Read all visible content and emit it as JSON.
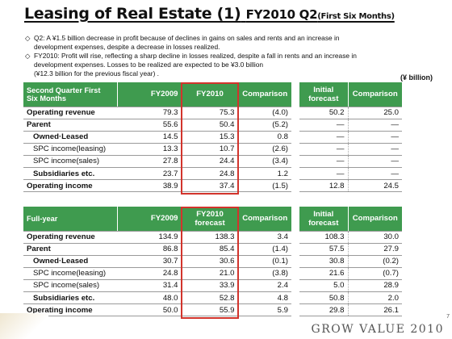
{
  "title": {
    "main": "Leasing of Real Estate (1)",
    "sub": "FY2010 Q2",
    "paren": "(First Six Months)"
  },
  "notes": [
    {
      "mark": "◇",
      "text": "Q2: A ¥1.5 billion decrease in profit because of declines in gains on sales and rents and an increase in"
    },
    {
      "mark": "",
      "text": "development expenses, despite a decrease in losses realized."
    },
    {
      "mark": "◇",
      "text": "FY2010: Profit will rise, reflecting a sharp decline in losses realized, despite a fall in rents and an increase in"
    },
    {
      "mark": "",
      "text": "development expenses. Losses to be realized are expected to be ¥3.0 billion"
    },
    {
      "mark": "",
      "text": "(¥12.3 billion for the previous fiscal year) ."
    }
  ],
  "unit": "(¥ billion)",
  "q2": {
    "header": {
      "label": "Second Quarter First Six Months",
      "c1": "FY2009",
      "c2": "FY2010",
      "c3": "Comparison"
    },
    "rows": [
      {
        "label": "Operating revenue",
        "a": "79.3",
        "b": "75.3",
        "c": "(4.0)"
      },
      {
        "label": "Parent",
        "a": "55.6",
        "b": "50.4",
        "c": "(5.2)"
      },
      {
        "label": "Owned·Leased",
        "a": "14.5",
        "b": "15.3",
        "c": "0.8"
      },
      {
        "label": "SPC income(leasing)",
        "a": "13.3",
        "b": "10.7",
        "c": "(2.6)"
      },
      {
        "label": "SPC income(sales)",
        "a": "27.8",
        "b": "24.4",
        "c": "(3.4)"
      },
      {
        "label": "Subsidiaries etc.",
        "a": "23.7",
        "b": "24.8",
        "c": "1.2"
      },
      {
        "label": "Operating income",
        "a": "38.9",
        "b": "37.4",
        "c": "(1.5)"
      }
    ],
    "forecast_header": {
      "c1": "Initial forecast",
      "c2": "Comparison"
    },
    "forecast_rows": [
      {
        "a": "50.2",
        "b": "25.0"
      },
      {
        "a": "―",
        "b": "―"
      },
      {
        "a": "―",
        "b": "―"
      },
      {
        "a": "―",
        "b": "―"
      },
      {
        "a": "―",
        "b": "―"
      },
      {
        "a": "―",
        "b": "―"
      },
      {
        "a": "12.8",
        "b": "24.5"
      }
    ]
  },
  "fy": {
    "header": {
      "label": "Full-year",
      "c1": "FY2009",
      "c2": "FY2010 forecast",
      "c3": "Comparison"
    },
    "rows": [
      {
        "label": "Operating revenue",
        "a": "134.9",
        "b": "138.3",
        "c": "3.4"
      },
      {
        "label": "Parent",
        "a": "86.8",
        "b": "85.4",
        "c": "(1.4)"
      },
      {
        "label": "Owned·Leased",
        "a": "30.7",
        "b": "30.6",
        "c": "(0.1)"
      },
      {
        "label": "SPC income(leasing)",
        "a": "24.8",
        "b": "21.0",
        "c": "(3.8)"
      },
      {
        "label": "SPC income(sales)",
        "a": "31.4",
        "b": "33.9",
        "c": "2.4"
      },
      {
        "label": "Subsidiaries etc.",
        "a": "48.0",
        "b": "52.8",
        "c": "4.8"
      },
      {
        "label": "Operating income",
        "a": "50.0",
        "b": "55.9",
        "c": "5.9"
      }
    ],
    "forecast_header": {
      "c1": "Initial forecast",
      "c2": "Comparison"
    },
    "forecast_rows": [
      {
        "a": "108.3",
        "b": "30.0"
      },
      {
        "a": "57.5",
        "b": "27.9"
      },
      {
        "a": "30.8",
        "b": "(0.2)"
      },
      {
        "a": "21.6",
        "b": "(0.7)"
      },
      {
        "a": "5.0",
        "b": "28.9"
      },
      {
        "a": "50.8",
        "b": "2.0"
      },
      {
        "a": "29.8",
        "b": "26.1"
      }
    ]
  },
  "footer": {
    "tagline": "GROW VALUE 2010",
    "page": "7"
  },
  "colors": {
    "header_green": "#3f9b4f",
    "highlight_red": "#d2342c"
  }
}
